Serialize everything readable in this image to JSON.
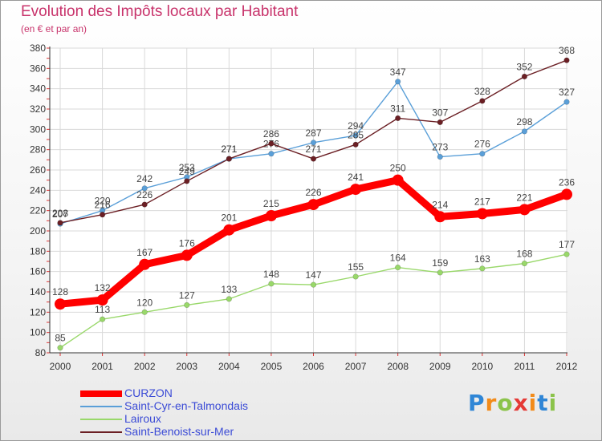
{
  "title": "Evolution des Impôts locaux par Habitant",
  "subtitle": "(en € et par an)",
  "brand": {
    "letters": [
      "P",
      "r",
      "o",
      "x",
      "i",
      "t",
      "i"
    ],
    "colors": [
      "#2f86d6",
      "#f28b1a",
      "#8bc34a",
      "#e53935",
      "#f28b1a",
      "#2f86d6",
      "#8bc34a"
    ]
  },
  "chart_data": {
    "type": "line",
    "title": "Evolution des Impôts locaux par Habitant",
    "subtitle": "(en € et par an)",
    "xlabel": "",
    "ylabel": "",
    "ylim": [
      80,
      380
    ],
    "yticks": [
      80,
      100,
      120,
      140,
      160,
      180,
      200,
      220,
      240,
      260,
      280,
      300,
      320,
      340,
      360,
      380
    ],
    "x": [
      "2000",
      "2001",
      "2002",
      "2003",
      "2004",
      "2005",
      "2006",
      "2007",
      "2008",
      "2009",
      "2010",
      "2011",
      "2012"
    ],
    "legend_position": "bottom-left",
    "series": [
      {
        "name": "Saint-Cyr-en-Talmondais",
        "color": "#5a9fd8",
        "values": [
          207,
          220,
          242,
          253,
          271,
          276,
          287,
          294,
          347,
          273,
          276,
          298,
          327
        ]
      },
      {
        "name": "Saint-Benoist-sur-Mer",
        "color": "#6b1f24",
        "values": [
          208,
          216,
          226,
          249,
          271,
          286,
          271,
          285,
          311,
          307,
          328,
          352,
          368
        ]
      },
      {
        "name": "Lairoux",
        "color": "#99d86a",
        "values": [
          85,
          113,
          120,
          127,
          133,
          148,
          147,
          155,
          164,
          159,
          163,
          168,
          177
        ]
      },
      {
        "name": "CURZON",
        "color": "#ff0000",
        "values": [
          128,
          132,
          167,
          176,
          201,
          215,
          226,
          241,
          250,
          214,
          217,
          221,
          236
        ]
      }
    ],
    "legend": [
      "CURZON",
      "Saint-Cyr-en-Talmondais",
      "Lairoux",
      "Saint-Benoist-sur-Mer"
    ]
  }
}
